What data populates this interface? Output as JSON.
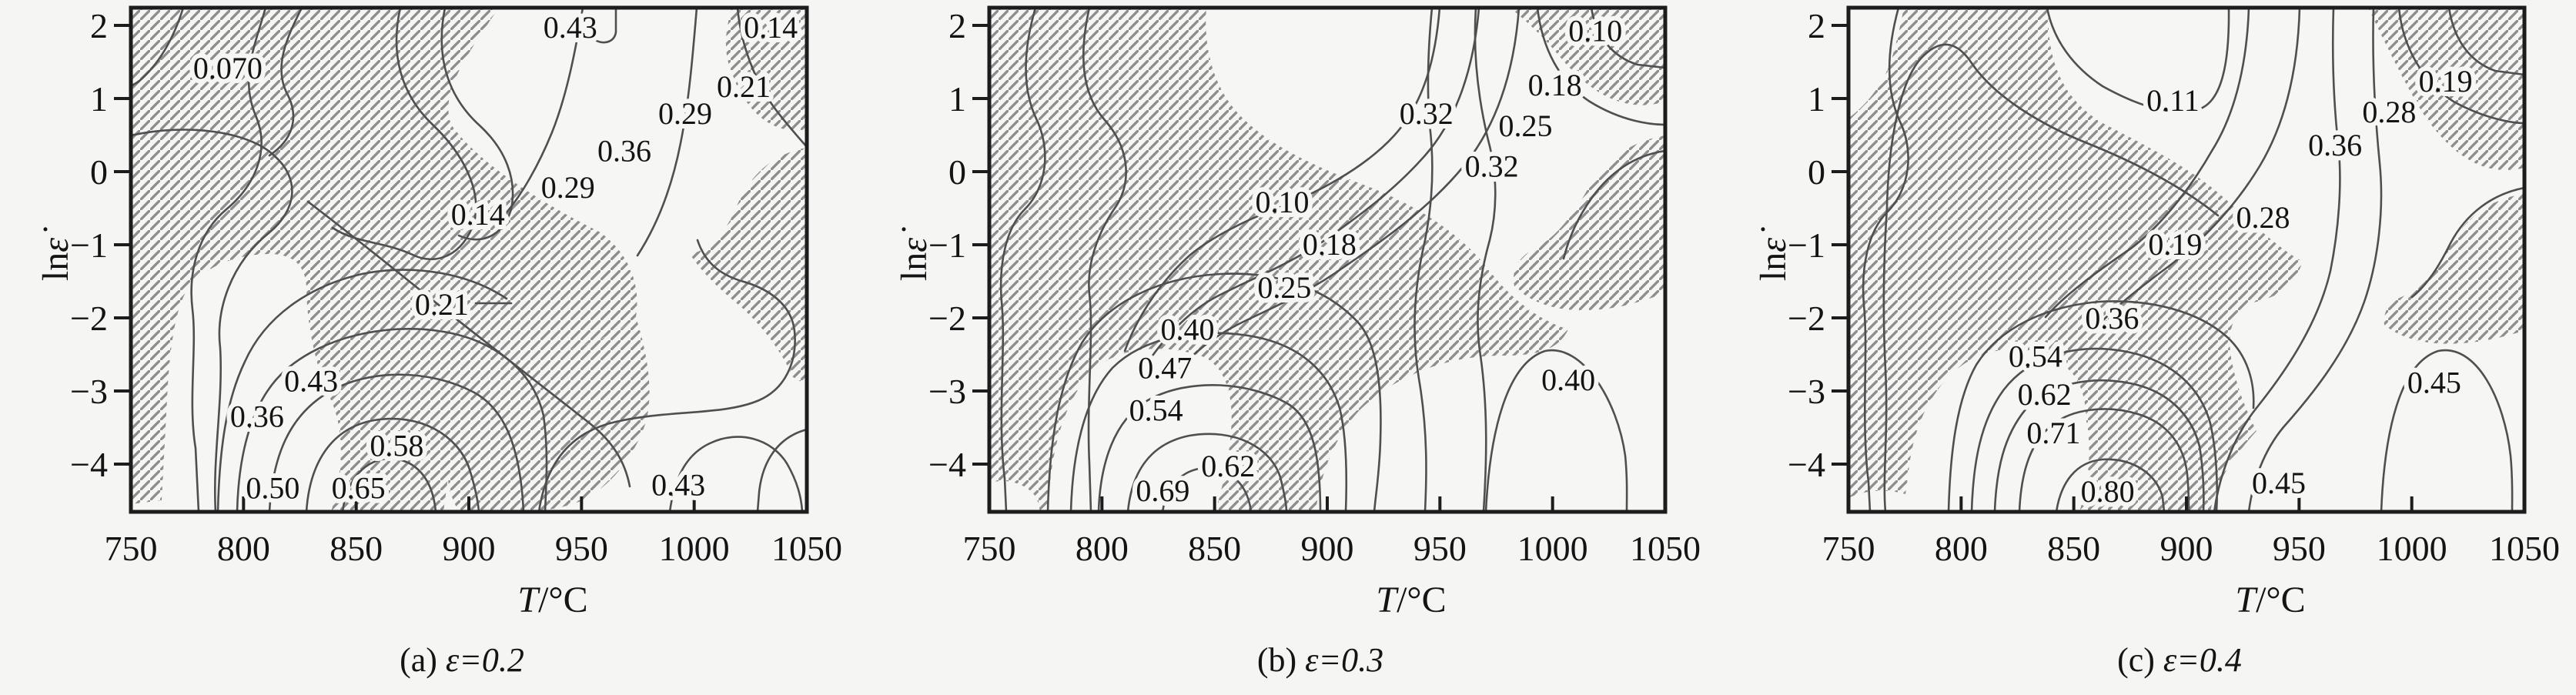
{
  "chart_data": {
    "type": "contour",
    "description_title": "",
    "colors": {
      "background": "#f5f5f4",
      "plot_bg": "#f6f6f5",
      "axis": "#1c1c1c",
      "contour": "#4f4f4f",
      "hatch": "#8e8e8e",
      "text": "#141414"
    },
    "x_axis": {
      "label": "T/°C",
      "label_var": "T",
      "label_unit": "/°C",
      "ticks": [
        750,
        800,
        850,
        900,
        950,
        1000,
        1050
      ],
      "range": [
        750,
        1050
      ],
      "grid": false
    },
    "y_axis": {
      "label": "lnε̇",
      "label_roman": "ln",
      "label_var": "ε̇",
      "ticks": [
        2,
        1,
        0,
        -1,
        -2,
        -3,
        -4
      ],
      "range": [
        -4.65,
        2.25
      ],
      "grid": false
    },
    "legend": "none",
    "panels": [
      {
        "id": "a",
        "caption_prefix": "(a)",
        "caption_formula": "ε=0.2",
        "strain": 0.2,
        "contour_labels": [
          {
            "value": "0.070",
            "T": 793,
            "lne": 1.42
          },
          {
            "value": "0.43",
            "T": 945,
            "lne": 1.98
          },
          {
            "value": "0.14",
            "T": 1034,
            "lne": 1.98
          },
          {
            "value": "0.21",
            "T": 1022,
            "lne": 1.17
          },
          {
            "value": "0.29",
            "T": 996,
            "lne": 0.8
          },
          {
            "value": "0.36",
            "T": 969,
            "lne": 0.29
          },
          {
            "value": "0.29",
            "T": 944,
            "lne": -0.21
          },
          {
            "value": "0.14",
            "T": 904,
            "lne": -0.58
          },
          {
            "value": "0.21",
            "T": 888,
            "lne": -1.81
          },
          {
            "value": "0.43",
            "T": 830,
            "lne": -2.86
          },
          {
            "value": "0.36",
            "T": 806,
            "lne": -3.34
          },
          {
            "value": "0.58",
            "T": 868,
            "lne": -3.74
          },
          {
            "value": "0.50",
            "T": 813,
            "lne": -4.32
          },
          {
            "value": "0.65",
            "T": 851,
            "lne": -4.32
          },
          {
            "value": "0.43",
            "T": 993,
            "lne": -4.28
          }
        ],
        "contour_paths": [
          "M238,10 C225,52 205,85 180,106 L170,112",
          "M345,10 C330,62 312,102 332,150 C352,196 330,242 294,272 C258,302 244,352 250,402 C256,452 244,522 254,582 L258,665",
          "M170,176 C242,160 322,170 356,202 C390,232 386,272 350,302 C300,342 280,402 286,452 C290,522 276,592 280,665",
          "M392,10 C372,50 356,86 372,120 C390,152 380,182 350,202",
          "M520,10 C506,72 522,124 562,162 C602,200 626,248 616,288 C602,332 566,346 536,331 C500,314 462,316 432,296",
          "M578,10 C564,80 586,130 624,164 C656,194 672,232 664,272 C652,310 622,318 596,306",
          "M400,262 C450,300 515,352 572,398 C640,452 712,508 766,550 C796,574 812,600 818,632",
          "M618,394 L664,394",
          "M800,10 L800,42 C798,54 786,58 775,53",
          "M757,10 C748,62 737,122 717,172 C699,216 678,252 658,276",
          "M905,10 C900,70 895,132 884,186 C873,242 854,292 828,332",
          "M958,10 C962,56 980,106 1008,143 C1028,169 1044,186 1048,191",
          "M700,665 C710,596 746,560 800,548 C870,532 940,540 986,520 C1020,505 1036,470 1032,430 C1028,396 1000,376 966,366 C930,356 914,336 906,312",
          "M870,665 C876,620 892,590 922,576 C960,558 1002,570 1022,602 C1036,626 1041,646 1042,665",
          "M1048,558 C1010,568 990,600 986,640 L984,665",
          "M445,665 C450,622 476,596 506,596 C540,596 562,622 566,665",
          "M398,665 C402,602 430,556 486,546 C546,536 596,566 610,610 C618,636 621,652 622,665",
          "M350,665 C354,592 376,540 426,510 C480,478 560,480 616,510 C656,532 676,582 680,665",
          "M308,665 C310,582 330,516 372,480 C420,438 500,420 570,430 C640,440 692,480 706,540 C712,582 710,622 708,665",
          "M283,665 C285,582 294,520 318,470 C344,412 400,372 470,356 C540,342 610,356 658,388"
        ],
        "instability_regions": [
          "M170,10 L648,10 C600,80 572,122 586,162 C622,212 700,262 780,302 C820,332 832,372 826,412 C790,446 740,450 700,470 C640,498 602,558 582,620 L576,665 L430,665 C446,612 448,560 430,520 C410,478 398,420 398,372 C396,344 380,330 350,330 C310,330 270,345 248,370 C230,390 222,440 218,500 L210,650 L170,655 Z",
          "M700,470 C740,450 792,446 826,412 C842,462 852,522 834,562 C818,600 790,635 752,652 C720,664 690,665 668,665 L596,665 C588,650 582,636 582,620 C602,558 640,498 700,470 Z",
          "M950,10 L1048,10 L1048,168 C995,178 962,132 948,88 C938,58 945,32 950,10 Z",
          "M1048,192 C1000,200 972,232 956,270 C942,304 920,326 896,330 C916,360 940,380 964,400 C990,424 1015,456 1030,490 L1048,500 Z"
        ],
        "clearings": []
      },
      {
        "id": "b",
        "caption_prefix": "(b)",
        "caption_formula": "ε=0.3",
        "strain": 0.3,
        "contour_labels": [
          {
            "value": "0.10",
            "T": 1019,
            "lne": 1.93
          },
          {
            "value": "0.18",
            "T": 1001,
            "lne": 1.19
          },
          {
            "value": "0.25",
            "T": 988,
            "lne": 0.63
          },
          {
            "value": "0.32",
            "T": 944,
            "lne": 0.8
          },
          {
            "value": "0.32",
            "T": 973,
            "lne": 0.08
          },
          {
            "value": "0.10",
            "T": 880,
            "lne": -0.41
          },
          {
            "value": "0.18",
            "T": 901,
            "lne": -0.99
          },
          {
            "value": "0.25",
            "T": 881,
            "lne": -1.58
          },
          {
            "value": "0.40",
            "T": 838,
            "lne": -2.15
          },
          {
            "value": "0.47",
            "T": 828,
            "lne": -2.68
          },
          {
            "value": "0.54",
            "T": 824,
            "lne": -3.26
          },
          {
            "value": "0.62",
            "T": 856,
            "lne": -4.02
          },
          {
            "value": "0.69",
            "T": 827,
            "lne": -4.36
          },
          {
            "value": "0.40",
            "T": 1007,
            "lne": -2.84
          }
        ],
        "contour_paths": [
          "M230,10 C215,62 212,112 230,152 C250,192 246,242 216,272 C192,296 182,342 186,392 C192,452 180,542 190,622 L192,665",
          "M300,10 C286,72 290,122 320,156 C350,190 356,232 336,266 C312,300 296,342 300,382 C306,432 296,522 300,602 L302,665",
          "M755,10 C750,72 736,132 696,176 C656,220 592,252 546,270 C502,286 456,310 430,332 C392,366 362,412 346,456",
          "M806,10 C800,82 780,152 736,202 C692,252 642,286 606,312 C562,342 512,362 472,382 C434,400 404,432 382,462",
          "M858,10 C852,92 830,162 786,216 C742,270 682,312 632,346 C582,382 532,402 492,422 C457,440 432,462 416,482",
          "M745,10 C740,62 738,112 742,162 C748,212 746,262 736,312 C722,372 718,432 728,492 C740,562 738,622 736,665",
          "M802,10 C798,72 806,132 818,182 C830,226 830,272 820,312 C806,362 800,412 808,462 C818,532 816,602 812,665",
          "M882,10 C888,62 910,106 950,132 C992,158 1030,162 1048,162",
          "M952,10 C958,48 980,74 1012,84 L1048,88",
          "M1048,196 C1008,202 976,224 952,258 C932,286 922,312 916,336",
          "M815,665 C820,562 842,472 892,456 C940,446 986,520 996,592 C999,622 998,646 998,665",
          "M395,665 C400,632 420,610 450,608 C486,608 506,632 510,665",
          "M350,665 C355,612 380,576 430,566 C490,556 536,582 548,620 C553,640 556,655 556,665",
          "M312,665 C314,602 332,546 376,520 C430,490 510,496 560,526 C590,546 600,592 600,665",
          "M276,665 C278,592 292,520 330,478 C370,438 440,426 506,436 C570,446 610,480 625,530 C633,562 635,612 633,665",
          "M246,665 C248,582 258,502 290,446 C325,390 395,360 470,356 C545,352 610,376 650,420 C676,450 680,512 678,572 C677,612 672,642 670,665"
        ],
        "instability_regions": [
          "M170,10 L452,10 C448,60 460,110 492,146 C530,188 592,216 656,240 C720,264 780,300 820,352 C852,394 890,418 922,428 C908,458 874,462 836,462 C760,462 692,492 650,534 C620,566 600,614 594,665 L170,665 Z",
          "M846,10 L1048,10 L1048,132 C988,150 942,112 908,70 C888,46 864,24 846,10 Z",
          "M1048,176 C1000,184 968,210 946,248 C928,280 904,310 880,322 C856,334 848,352 852,372 C888,408 948,408 1000,396 C1022,390 1040,384 1048,380 Z"
        ],
        "clearings": [
          "M246,665 C250,580 268,520 304,482 C340,448 400,448 444,462 C476,474 488,512 484,560 C480,610 470,640 464,665 Z",
          "M170,628 C190,620 220,628 232,648 L236,665 L170,665 Z"
        ]
      },
      {
        "id": "c",
        "caption_prefix": "(c)",
        "caption_formula": "ε=0.4",
        "strain": 0.4,
        "contour_labels": [
          {
            "value": "0.11",
            "T": 894,
            "lne": 0.98
          },
          {
            "value": "0.19",
            "T": 1015,
            "lne": 1.24
          },
          {
            "value": "0.28",
            "T": 990,
            "lne": 0.82
          },
          {
            "value": "0.36",
            "T": 966,
            "lne": 0.37
          },
          {
            "value": "0.28",
            "T": 934,
            "lne": -0.62
          },
          {
            "value": "0.19",
            "T": 895,
            "lne": -0.99
          },
          {
            "value": "0.36",
            "T": 867,
            "lne": -2.0
          },
          {
            "value": "0.54",
            "T": 833,
            "lne": -2.52
          },
          {
            "value": "0.62",
            "T": 837,
            "lne": -3.04
          },
          {
            "value": "0.71",
            "T": 841,
            "lne": -3.57
          },
          {
            "value": "0.80",
            "T": 865,
            "lne": -4.37
          },
          {
            "value": "0.45",
            "T": 941,
            "lne": -4.25
          },
          {
            "value": "0.45",
            "T": 1010,
            "lne": -2.88
          }
        ],
        "contour_paths": [
          "M235,10 C220,65 218,115 236,156 C256,196 250,246 220,276 C196,300 186,346 190,396 C196,456 186,546 196,626 L198,665",
          "M218,480 C214,400 216,330 220,270 C222,180 238,105 264,76 C288,50 310,52 330,82 C360,126 420,162 480,186 C540,210 600,240 650,280",
          "M218,480 C222,560 214,620 218,665",
          "M428,10 C436,52 462,87 500,112 C545,137 590,152 625,142 C655,132 665,82 664,10",
          "M690,10 C688,72 676,142 642,196 C610,252 572,296 538,322 C494,352 452,382 426,412",
          "M756,10 C754,82 740,156 704,216 C670,272 626,316 586,346 C548,374 512,402 490,428",
          "M800,10 C798,72 800,132 806,186 C812,240 806,302 796,352 C780,420 740,480 700,530 C672,565 652,615 645,665",
          "M852,10 C850,82 854,152 860,212 C866,272 858,340 840,392 C818,455 775,510 735,555 C710,585 695,625 690,665",
          "M885,10 C890,62 916,106 956,132 C1000,156 1036,160 1048,160",
          "M950,10 C956,50 976,80 1010,92 L1048,97",
          "M1048,244 C1006,252 972,278 952,316 C937,346 922,370 902,386",
          "M862,665 C866,562 886,472 936,456 C986,446 1022,520 1030,592 C1033,624 1032,648 1032,665",
          "M300,665 C302,590 310,520 336,474 C366,426 426,398 496,392 C566,388 626,406 662,438 C688,462 698,496 696,530",
          "M330,665 C332,600 342,546 372,506 C406,462 466,446 526,456 C586,466 626,500 640,550 C648,586 650,630 648,665",
          "M360,665 C362,610 372,566 400,532 C430,498 486,488 536,498 C586,508 616,540 626,580 C631,610 632,642 631,665",
          "M392,665 C394,618 404,580 430,556 C458,530 506,526 546,538 C586,550 606,580 610,616 C612,636 612,652 612,665",
          "M440,665 C446,626 466,600 500,597 C540,595 570,616 578,646 L580,665"
        ],
        "instability_regions": [
          "M242,10 L430,10 C426,80 450,132 504,162 C558,190 610,216 652,252 C694,288 724,320 760,340 C748,374 726,386 700,392 C670,400 660,430 668,470 C676,510 690,540 700,560 C664,600 646,632 640,665 L470,665 C494,590 482,516 448,478 C414,442 340,446 300,490 C268,522 252,570 248,614 L244,642 C216,634 190,638 172,646 L172,152 C195,135 215,108 225,80 C233,55 238,30 242,10 Z",
          "M845,10 L1048,10 L1048,218 C992,232 950,196 918,150 C894,112 868,58 845,10 Z",
          "M1048,252 C1002,258 968,286 948,324 C932,354 912,376 888,386 C872,392 864,406 866,422 C902,452 960,450 1010,440 C1026,436 1040,432 1048,430 Z"
        ],
        "clearings": [
          "M248,665 C252,586 268,524 304,488 C338,454 396,456 440,470 C470,482 482,518 478,564 C474,612 466,642 460,665 Z",
          "M172,650 C192,642 220,648 234,660 L236,665 L172,665 Z"
        ]
      }
    ]
  }
}
